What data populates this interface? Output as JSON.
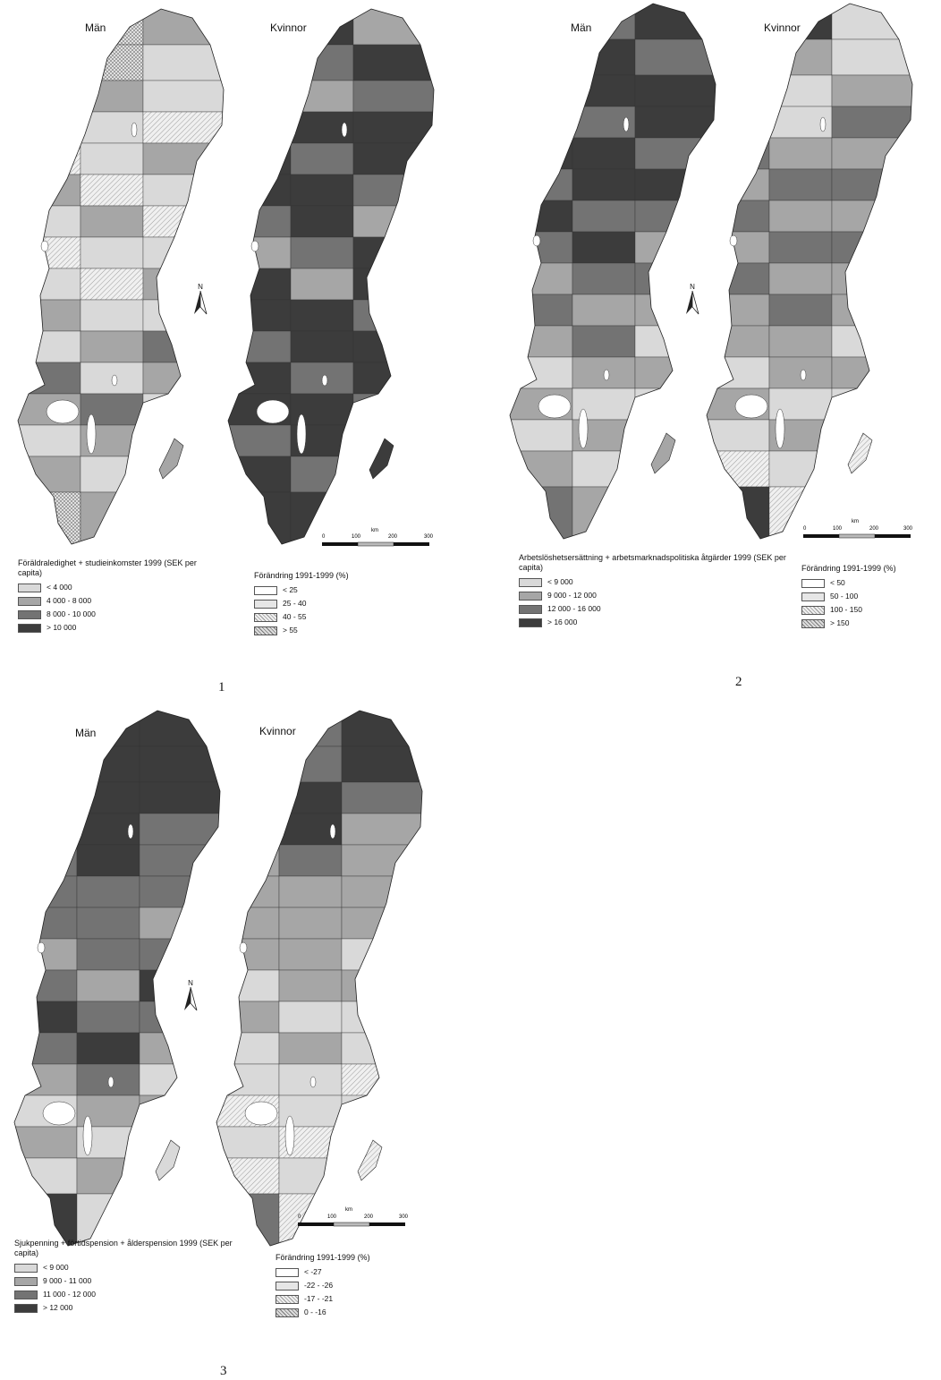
{
  "colors": {
    "class1": "#d9d9d9",
    "class2": "#a6a6a6",
    "class3": "#737373",
    "class4": "#3c3c3c",
    "hatch_none": "#ffffff",
    "hatch_light": "#e6e6e6"
  },
  "icons": {
    "north_arrow": "north-arrow-icon"
  },
  "panels": [
    {
      "number": "1",
      "left_map_label": "Män",
      "right_map_label": "Kvinnor",
      "north_label": "N",
      "scale": {
        "unit": "km",
        "ticks": [
          "0",
          "100",
          "200",
          "300"
        ]
      },
      "legend_level": {
        "title": "Föräldraledighet + studieinkomster 1999 (SEK per capita)",
        "classes": [
          "< 4 000",
          "4 000 - 8 000",
          "8 000 - 10 000",
          "> 10 000"
        ]
      },
      "legend_change": {
        "title": "Förändring 1991-1999 (%)",
        "classes": [
          "< 25",
          "25 - 40",
          "40 - 55",
          "> 55"
        ]
      }
    },
    {
      "number": "2",
      "left_map_label": "Män",
      "right_map_label": "Kvinnor",
      "north_label": "N",
      "scale": {
        "unit": "km",
        "ticks": [
          "0",
          "100",
          "200",
          "300"
        ]
      },
      "legend_level": {
        "title": "Arbetslöshetsersättning + arbetsmarknadspolitiska åtgärder 1999 (SEK per capita)",
        "classes": [
          "< 9 000",
          "9 000 - 12 000",
          "12 000 - 16 000",
          "> 16 000"
        ]
      },
      "legend_change": {
        "title": "Förändring 1991-1999 (%)",
        "classes": [
          "< 50",
          "50 - 100",
          "100 - 150",
          "> 150"
        ]
      }
    },
    {
      "number": "3",
      "left_map_label": "Män",
      "right_map_label": "Kvinnor",
      "north_label": "N",
      "scale": {
        "unit": "km",
        "ticks": [
          "0",
          "100",
          "200",
          "300"
        ]
      },
      "legend_level": {
        "title": "Sjukpenning + förtidspension + ålderspension 1999 (SEK per capita)",
        "classes": [
          "< 9 000",
          "9 000 - 11 000",
          "11 000 - 12 000",
          "> 12 000"
        ]
      },
      "legend_change": {
        "title": "Förändring 1991-1999 (%)",
        "classes": [
          "< -27",
          "-22 - -26",
          "-17 - -21",
          "0 - -16"
        ]
      }
    }
  ]
}
